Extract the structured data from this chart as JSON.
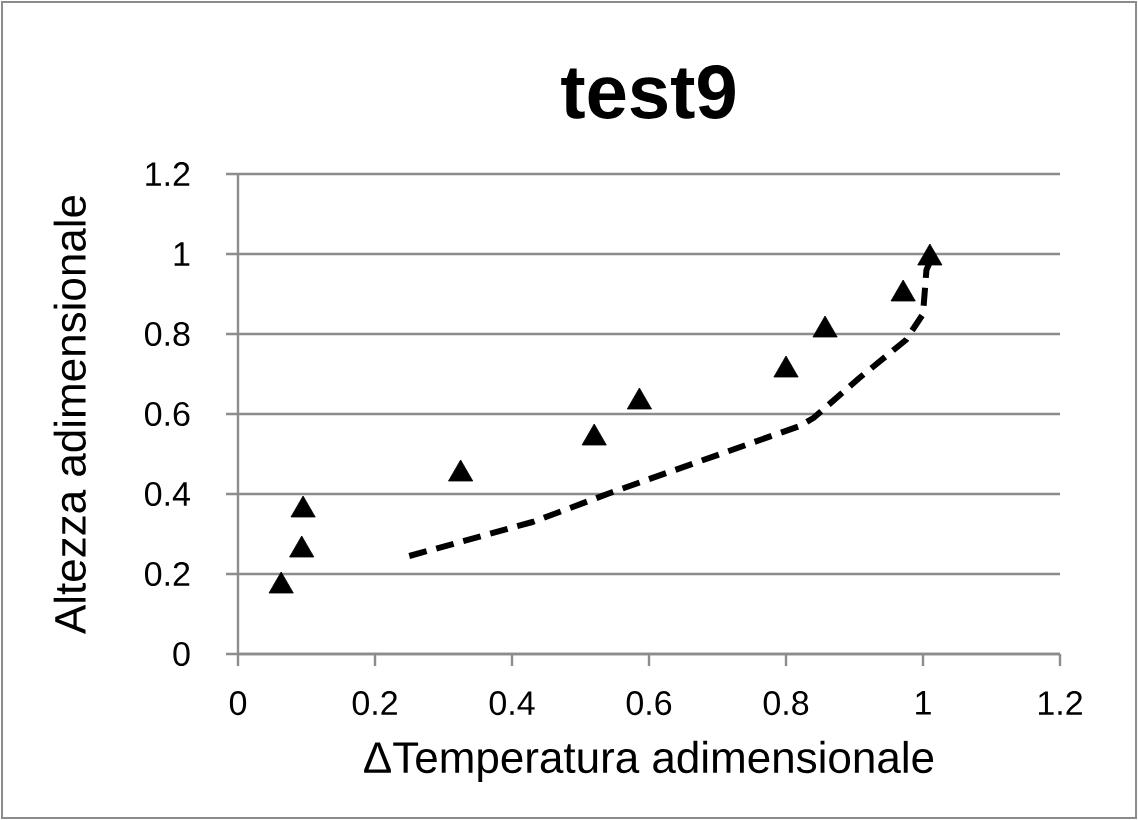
{
  "chart_data": {
    "type": "scatter",
    "title": "test9",
    "xlabel": "ΔTemperatura adimensionale",
    "ylabel": "Altezza adimensionale",
    "xlim": [
      0,
      1.2
    ],
    "ylim": [
      0,
      1.2
    ],
    "xticks": [
      0,
      0.2,
      0.4,
      0.6,
      0.8,
      1,
      1.2
    ],
    "yticks": [
      0,
      0.2,
      0.4,
      0.6,
      0.8,
      1,
      1.2
    ],
    "grid": "y",
    "series": [
      {
        "color": "#000000",
        "marker": "triangle",
        "x": [
          0.063,
          0.093,
          0.095,
          0.325,
          0.52,
          0.586,
          0.8,
          0.857,
          0.971,
          1.01
        ],
        "values": [
          0.17,
          0.26,
          0.36,
          0.45,
          0.54,
          0.63,
          0.71,
          0.81,
          0.9,
          0.99
        ]
      },
      {
        "type": "line",
        "color": "#000000",
        "line_style": "dashed",
        "marker": "none",
        "x": [
          0.25,
          0.43,
          0.547,
          0.82,
          0.84,
          0.907,
          0.975,
          1.0,
          1.005,
          1.01
        ],
        "values": [
          0.245,
          0.33,
          0.405,
          0.57,
          0.59,
          0.69,
          0.785,
          0.85,
          0.96,
          0.98
        ]
      }
    ]
  }
}
